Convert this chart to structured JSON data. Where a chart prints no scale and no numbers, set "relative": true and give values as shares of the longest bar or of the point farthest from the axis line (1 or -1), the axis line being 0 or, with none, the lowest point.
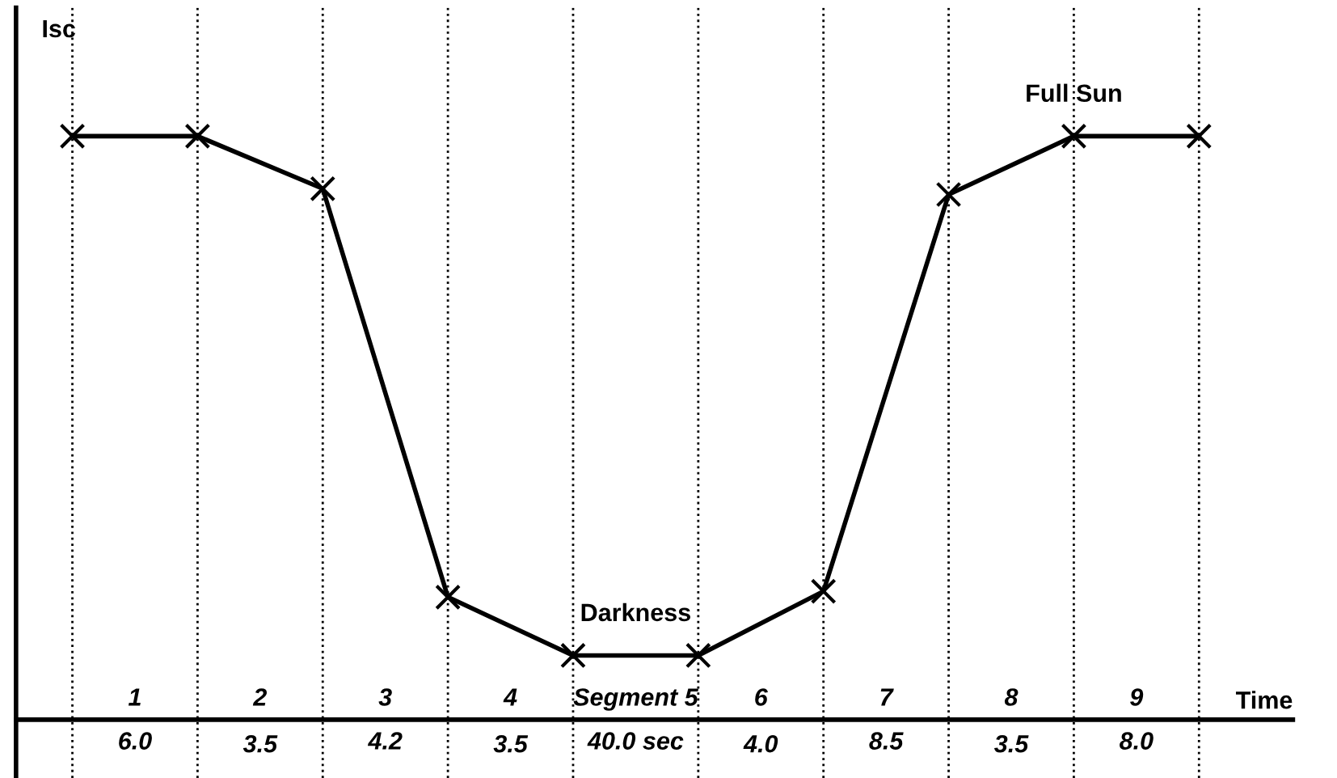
{
  "chart_data": {
    "type": "line",
    "relative": true,
    "ylabel": "Isc",
    "xlabel": "Time",
    "categories": [
      null,
      null,
      null,
      null,
      null,
      null,
      null,
      null,
      null,
      null
    ],
    "series": [
      {
        "color": "#000000",
        "values": [
          1.0,
          1.0,
          0.91,
          0.21,
          0.11,
          0.11,
          0.22,
          0.9,
          1.0,
          1.0
        ]
      }
    ],
    "marker": "cross",
    "line_style": "solid",
    "grid": "x",
    "annotations": [
      "Full Sun",
      "Darkness",
      "1",
      "2",
      "3",
      "4",
      "Segment 5",
      "6",
      "7",
      "8",
      "9",
      "6.0",
      "3.5",
      "4.2",
      "3.5",
      "40.0 sec",
      "4.0",
      "8.5",
      "3.5",
      "8.0"
    ]
  }
}
